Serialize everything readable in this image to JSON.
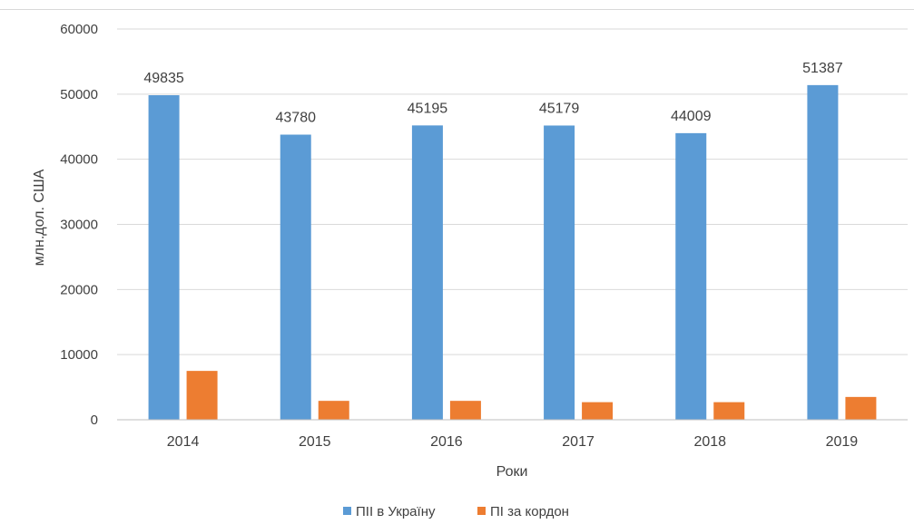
{
  "chart_data": {
    "type": "bar",
    "categories": [
      "2014",
      "2015",
      "2016",
      "2017",
      "2018",
      "2019"
    ],
    "series": [
      {
        "name": "ПІІ в Україну",
        "color": "#5b9bd5",
        "values": [
          49835,
          43780,
          45195,
          45179,
          44009,
          51387
        ],
        "data_labels": [
          "49835",
          "43780",
          "45195",
          "45179",
          "44009",
          "51387"
        ]
      },
      {
        "name": "ПІ за кордон",
        "color": "#ed7d31",
        "values": [
          7500,
          2900,
          2900,
          2700,
          2700,
          3500
        ]
      }
    ],
    "ylim": [
      0,
      60000
    ],
    "yticks": [
      "0",
      "10000",
      "20000",
      "30000",
      "40000",
      "50000",
      "60000"
    ],
    "xlabel": "Роки",
    "ylabel": "млн.дол. США",
    "grid": true,
    "legend": "bottom-center",
    "colors": {
      "grid": "#d9d9d9",
      "text": "#404040"
    }
  }
}
